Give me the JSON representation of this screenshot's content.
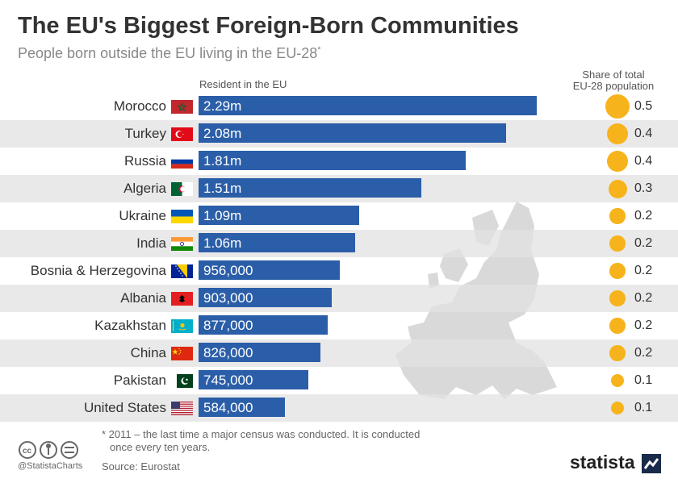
{
  "header": {
    "title": "The EU's Biggest Foreign-Born Communities",
    "subtitle": "People born outside the EU living in the EU-28",
    "subtitle_mark": "*"
  },
  "columns": {
    "left": "Resident in the EU",
    "right_line1": "Share of total",
    "right_line2": "EU-28 population"
  },
  "chart_data": {
    "type": "bar",
    "orientation": "horizontal",
    "categories": [
      "Morocco",
      "Turkey",
      "Russia",
      "Algeria",
      "Ukraine",
      "India",
      "Bosnia & Herzegovina",
      "Albania",
      "Kazakhstan",
      "China",
      "Pakistan",
      "United States"
    ],
    "values": [
      2290000,
      2080000,
      1810000,
      1510000,
      1090000,
      1060000,
      956000,
      903000,
      877000,
      826000,
      745000,
      584000
    ],
    "value_labels": [
      "2.29m",
      "2.08m",
      "1.81m",
      "1.51m",
      "1.09m",
      "1.06m",
      "956,000",
      "903,000",
      "877,000",
      "826,000",
      "745,000",
      "584,000"
    ],
    "share_values": [
      0.5,
      0.4,
      0.4,
      0.3,
      0.2,
      0.2,
      0.2,
      0.2,
      0.2,
      0.2,
      0.1,
      0.1
    ],
    "share_labels": [
      "0.5",
      "0.4",
      "0.4",
      "0.3",
      "0.2",
      "0.2",
      "0.2",
      "0.2",
      "0.2",
      "0.2",
      "0.1",
      "0.1"
    ],
    "flags": [
      "morocco-flag",
      "turkey-flag",
      "russia-flag",
      "algeria-flag",
      "ukraine-flag",
      "india-flag",
      "bosnia-flag",
      "albania-flag",
      "kazakhstan-flag",
      "china-flag",
      "pakistan-flag",
      "usa-flag"
    ],
    "bar_color": "#2b5ea8",
    "dot_color": "#f6b31b",
    "row_shading_color": "#e2e2e2"
  },
  "footer": {
    "footnote_line1": "* 2011 – the last time a major census was conducted. It is conducted",
    "footnote_line2": "once every ten years.",
    "source": "Source: Eurostat",
    "handle": "@StatistaCharts",
    "brand": "statista"
  },
  "icons": [
    "cc-icon",
    "by-icon",
    "nd-icon",
    "europe-map-icon",
    "statista-logo-icon"
  ]
}
